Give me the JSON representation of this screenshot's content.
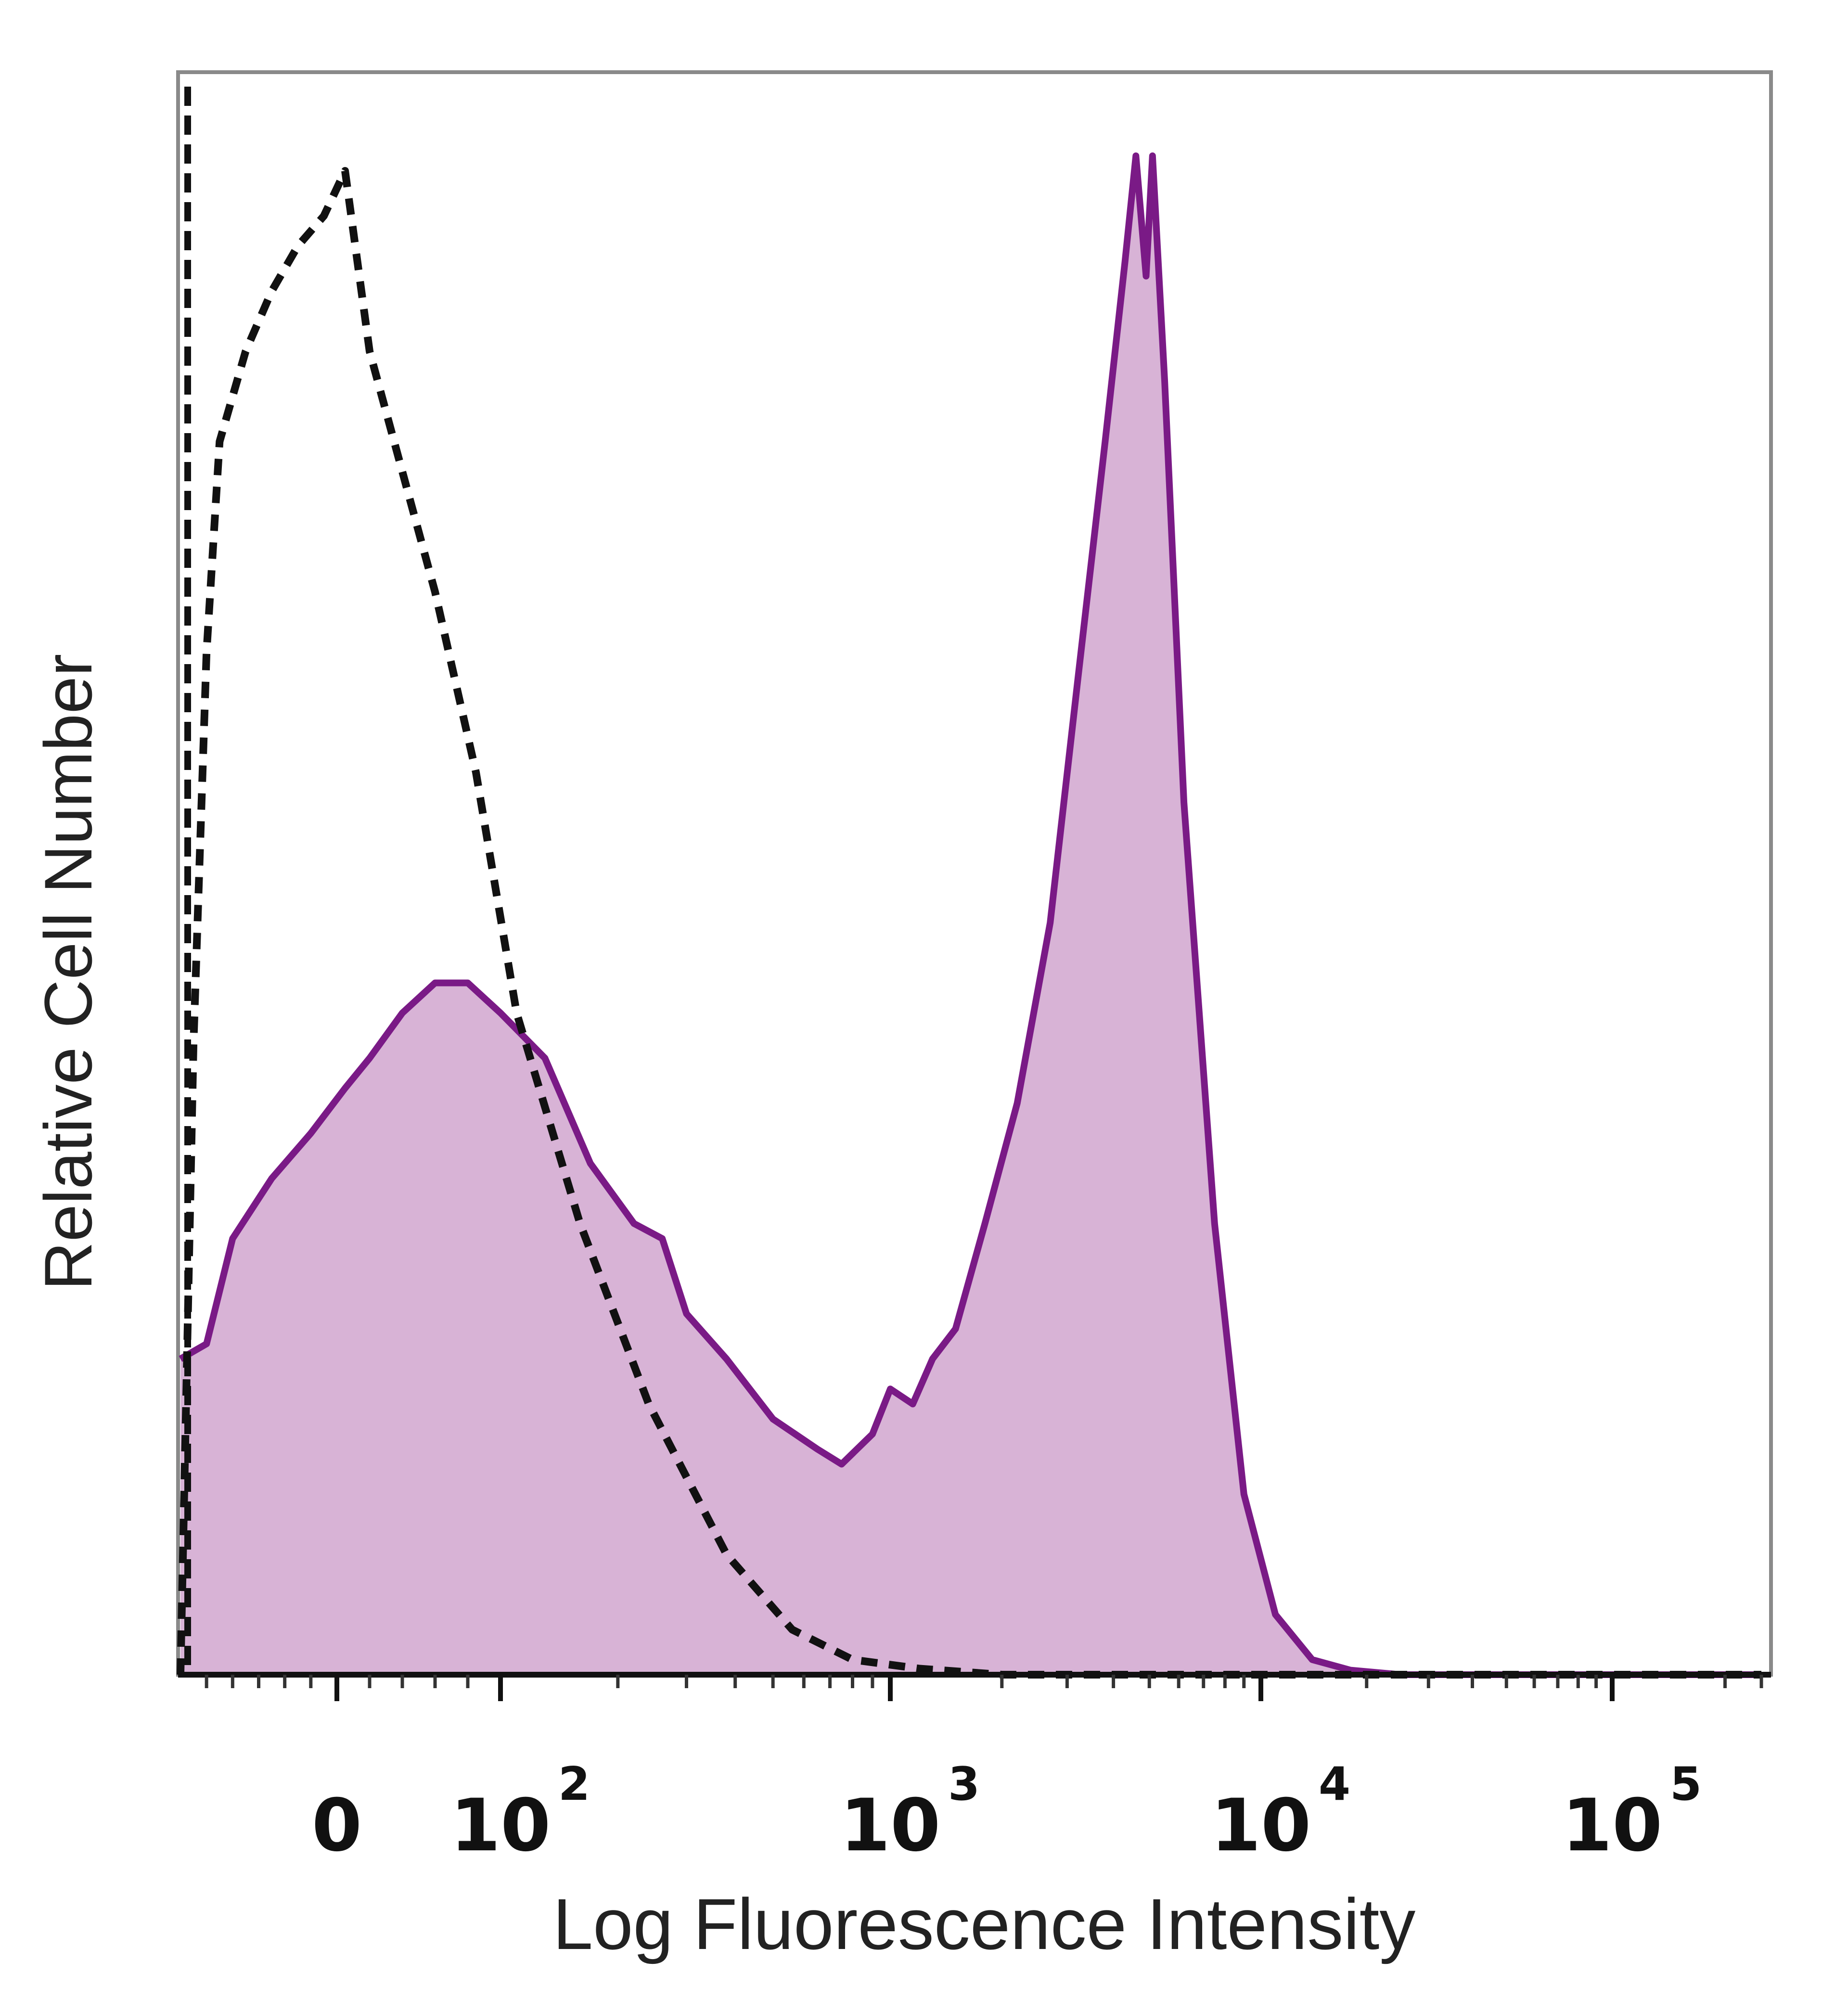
{
  "chart_data": {
    "type": "area",
    "title": "",
    "xlabel": "Log Fluorescence Intensity",
    "ylabel": "Relative Cell Number",
    "xscale": "biexponential",
    "xlim": [
      -60,
      250000
    ],
    "ylim": [
      0,
      100
    ],
    "grid": false,
    "legend": "none",
    "x_ticks": [
      {
        "value": 0,
        "base": "0",
        "exp": ""
      },
      {
        "value": 100,
        "base": "10",
        "exp": "2"
      },
      {
        "value": 1000,
        "base": "10",
        "exp": "3"
      },
      {
        "value": 10000,
        "base": "10",
        "exp": "4"
      },
      {
        "value": 100000,
        "base": "10",
        "exp": "5"
      }
    ],
    "series": [
      {
        "style": "filled-solid",
        "color": "#7a1a86",
        "fill": "#d8b3d6",
        "points": [
          [
            -60,
            21
          ],
          [
            -50,
            22
          ],
          [
            -40,
            29
          ],
          [
            -25,
            33
          ],
          [
            -10,
            36
          ],
          [
            5,
            39
          ],
          [
            20,
            41
          ],
          [
            40,
            44
          ],
          [
            60,
            46
          ],
          [
            80,
            46
          ],
          [
            100,
            44
          ],
          [
            130,
            41
          ],
          [
            170,
            34
          ],
          [
            220,
            30
          ],
          [
            260,
            29
          ],
          [
            300,
            24
          ],
          [
            380,
            21
          ],
          [
            500,
            17
          ],
          [
            650,
            15
          ],
          [
            750,
            14
          ],
          [
            900,
            16
          ],
          [
            1000,
            19
          ],
          [
            1150,
            18
          ],
          [
            1300,
            21
          ],
          [
            1500,
            23
          ],
          [
            1800,
            30
          ],
          [
            2200,
            38
          ],
          [
            2700,
            50
          ],
          [
            3200,
            66
          ],
          [
            3800,
            82
          ],
          [
            4300,
            94
          ],
          [
            4600,
            101
          ],
          [
            4900,
            93
          ],
          [
            5100,
            101
          ],
          [
            5500,
            86
          ],
          [
            6200,
            58
          ],
          [
            7500,
            30
          ],
          [
            9000,
            12
          ],
          [
            11000,
            4
          ],
          [
            14000,
            1
          ],
          [
            18000,
            0.3
          ],
          [
            25000,
            0
          ],
          [
            250000,
            0
          ]
        ]
      },
      {
        "style": "dashed",
        "color": "#111111",
        "points": [
          [
            -60,
            0
          ],
          [
            -55,
            42
          ],
          [
            -50,
            68
          ],
          [
            -45,
            82
          ],
          [
            -35,
            88
          ],
          [
            -25,
            92
          ],
          [
            -15,
            95
          ],
          [
            -5,
            97
          ],
          [
            5,
            100
          ],
          [
            20,
            88
          ],
          [
            40,
            80
          ],
          [
            60,
            72
          ],
          [
            85,
            60
          ],
          [
            110,
            44
          ],
          [
            160,
            30
          ],
          [
            240,
            18
          ],
          [
            380,
            8
          ],
          [
            560,
            3
          ],
          [
            800,
            1
          ],
          [
            1200,
            0.4
          ],
          [
            2000,
            0
          ],
          [
            250000,
            0
          ]
        ]
      }
    ]
  }
}
